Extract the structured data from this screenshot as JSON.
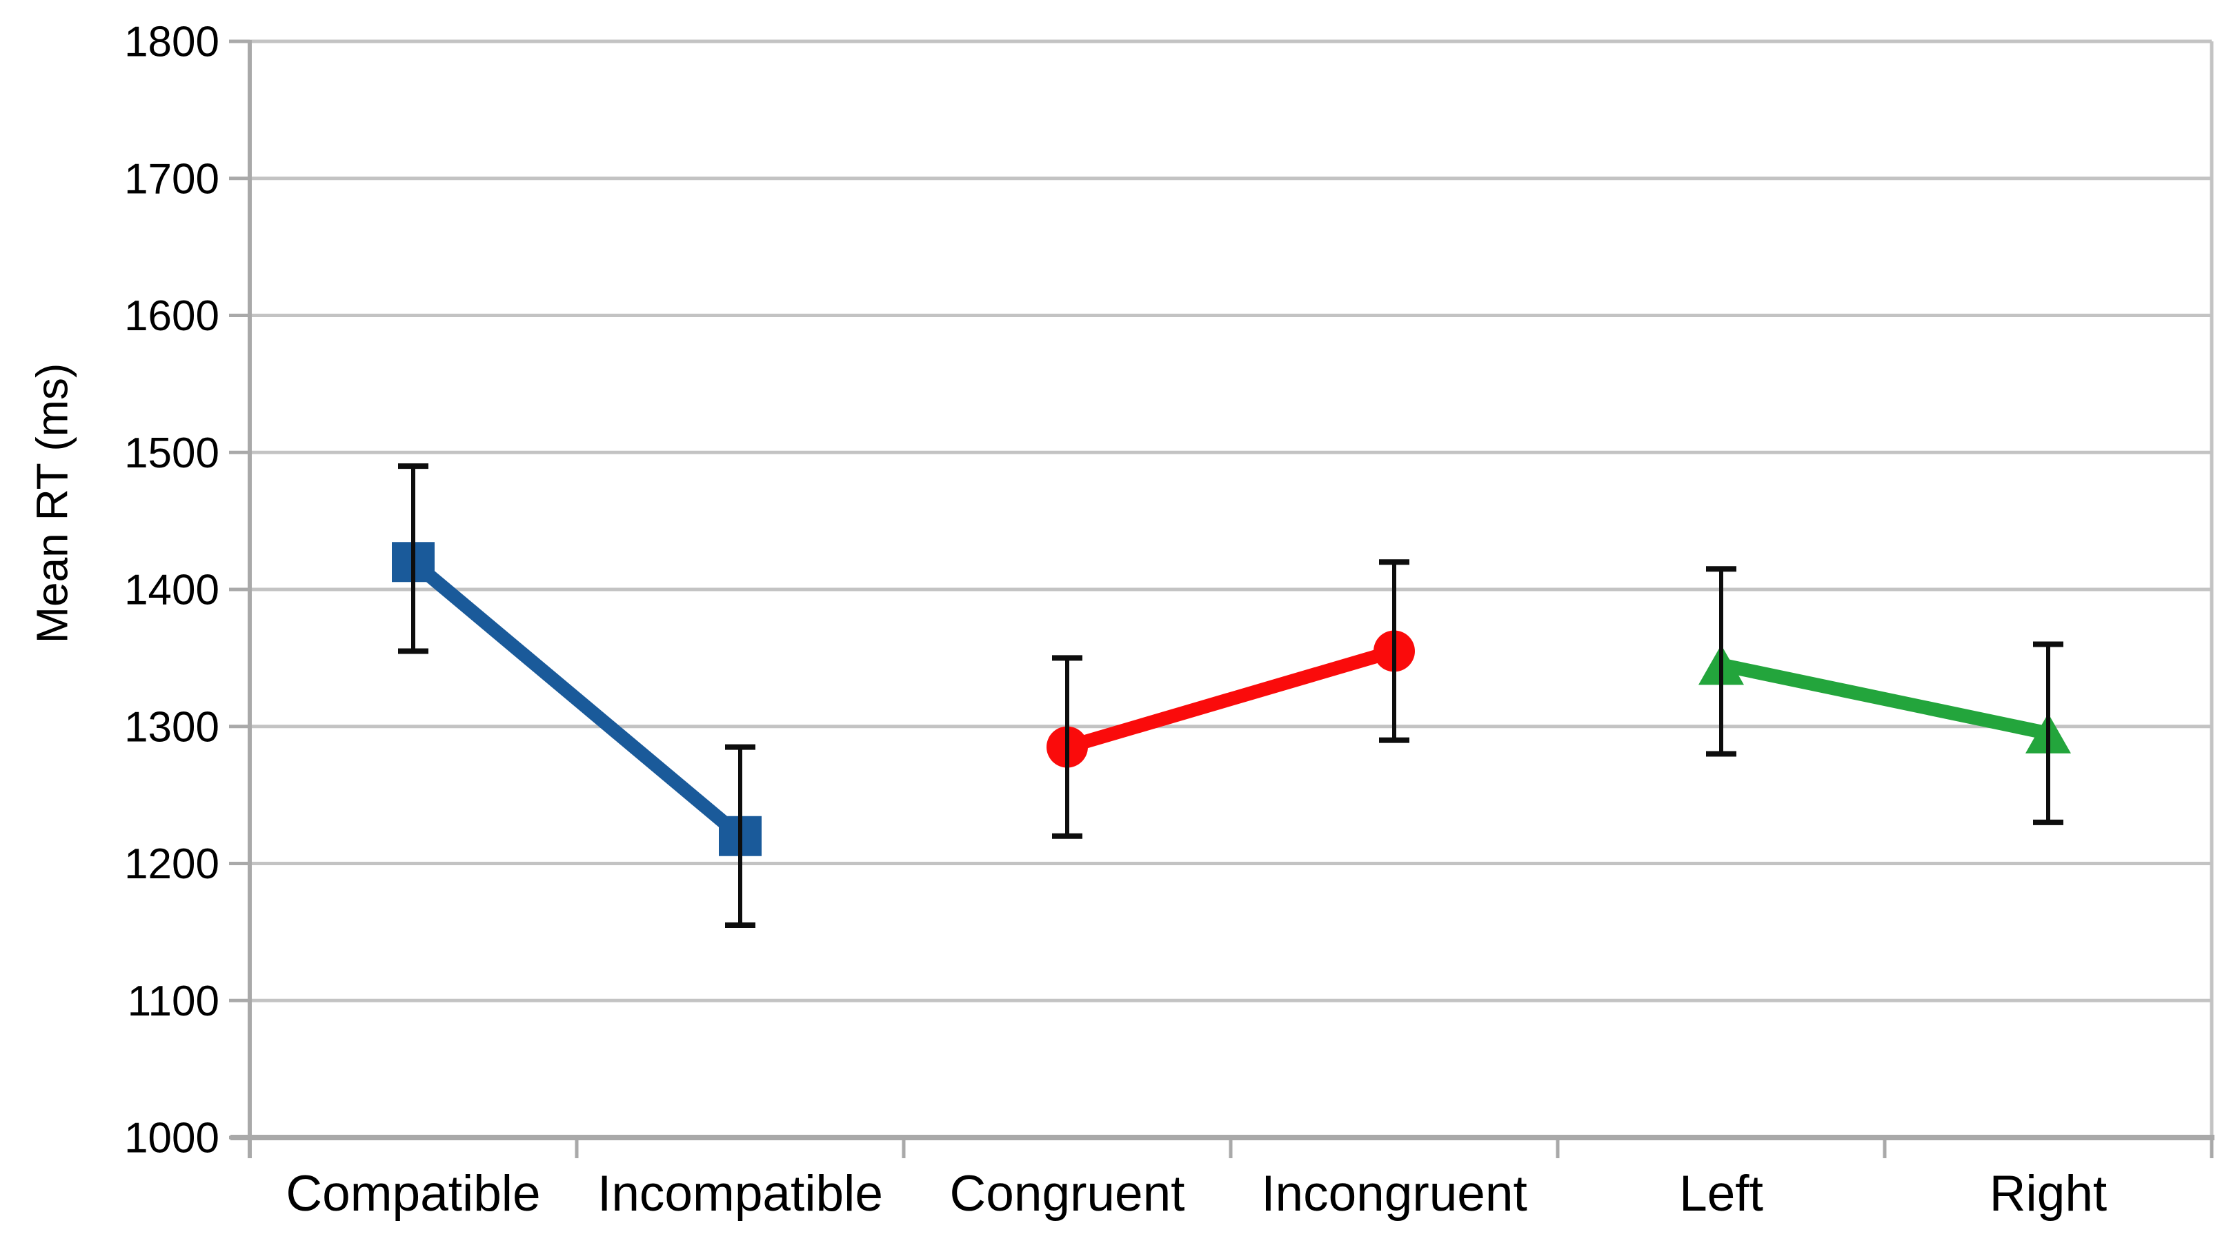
{
  "page": {
    "background": "#FFFFFF"
  },
  "chart_data": {
    "type": "line",
    "title": "",
    "xlabel": "",
    "ylabel": "Mean RT (ms)",
    "ylim": [
      1000,
      1800
    ],
    "ytick_step": 100,
    "grid": "horizontal",
    "legend": "none",
    "categories": [
      "Compatible",
      "Incompatible",
      "Congruent",
      "Incongruent",
      "Left",
      "Right"
    ],
    "series": [
      {
        "id": "series-1",
        "marker": "square",
        "color": "#1A5A9A",
        "points": [
          {
            "category": "Compatible",
            "mean": 1420,
            "ci_low": 1355,
            "ci_high": 1490
          },
          {
            "category": "Incompatible",
            "mean": 1220,
            "ci_low": 1155,
            "ci_high": 1285
          }
        ]
      },
      {
        "id": "series-2",
        "marker": "circle",
        "color": "#FA0B0B",
        "points": [
          {
            "category": "Congruent",
            "mean": 1285,
            "ci_low": 1220,
            "ci_high": 1350
          },
          {
            "category": "Incongruent",
            "mean": 1355,
            "ci_low": 1290,
            "ci_high": 1420
          }
        ]
      },
      {
        "id": "series-3",
        "marker": "triangle",
        "color": "#23A53C",
        "points": [
          {
            "category": "Left",
            "mean": 1345,
            "ci_low": 1280,
            "ci_high": 1415
          },
          {
            "category": "Right",
            "mean": 1295,
            "ci_low": 1230,
            "ci_high": 1360
          }
        ]
      }
    ],
    "error_bars": true,
    "colors": {
      "gridline": "#C3C3C3",
      "axis": "#A9A9A9",
      "error_bar": "#0D0D0D",
      "text": "#000000"
    }
  }
}
